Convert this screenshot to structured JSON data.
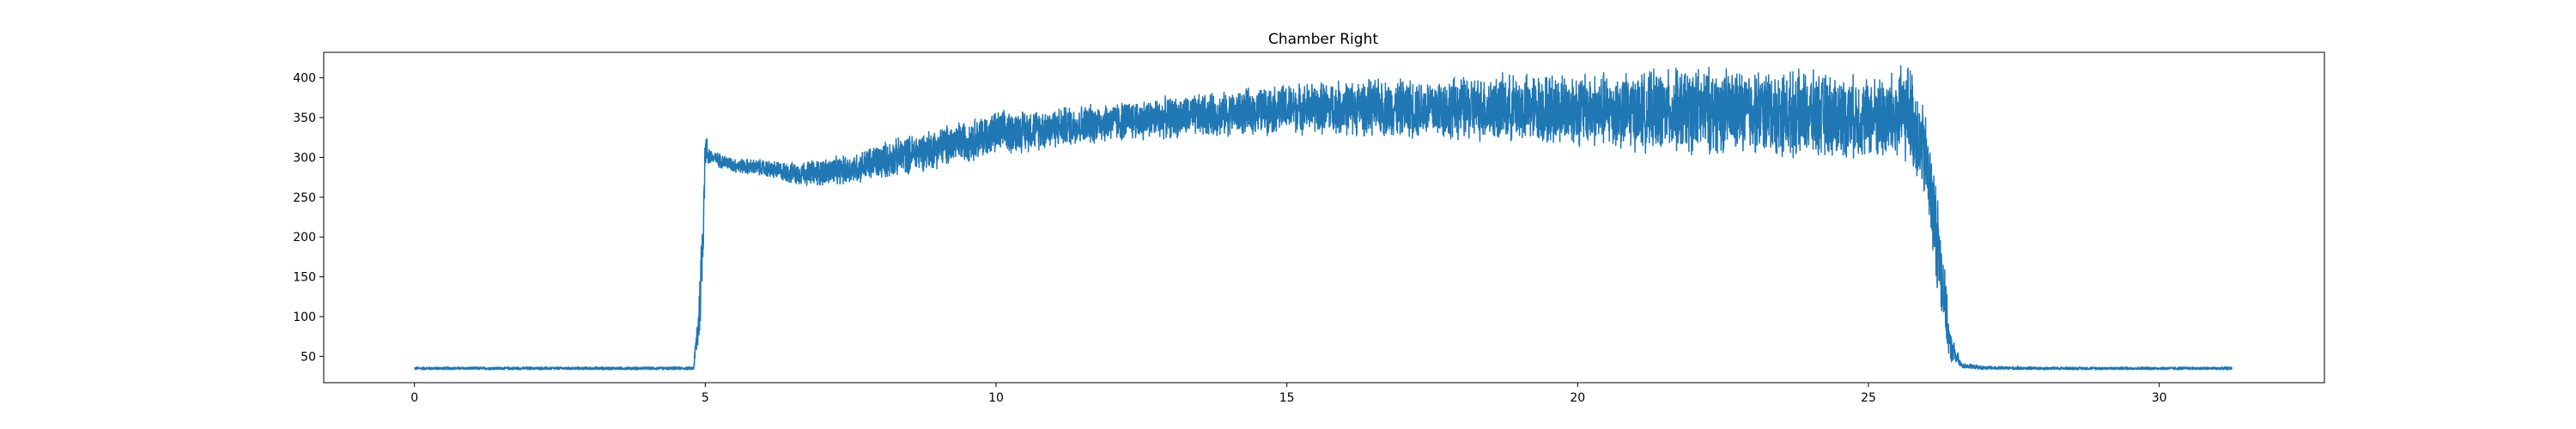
{
  "chart_data": {
    "type": "line",
    "title": "Chamber Right",
    "xlabel": "",
    "ylabel": "",
    "xlim": [
      -1.56,
      32.84
    ],
    "ylim": [
      17,
      432
    ],
    "xticks": [
      0,
      5,
      10,
      15,
      20,
      25,
      30
    ],
    "yticks": [
      50,
      100,
      150,
      200,
      250,
      300,
      350,
      400
    ],
    "grid": false,
    "legend": "none",
    "series_color": "#1f77b4",
    "series": [
      {
        "x": [
          0,
          1,
          2,
          3,
          4,
          4.8,
          4.9,
          4.95,
          5.0,
          5.1,
          5.5,
          6.0,
          6.5,
          7.0,
          7.5,
          8.0,
          9.0,
          10.0,
          11.0,
          12.0,
          13.0,
          14.0,
          15.0,
          16.0,
          17.0,
          18.0,
          19.0,
          20.0,
          21.0,
          22.0,
          23.0,
          24.0,
          25.0,
          25.5,
          25.7,
          26.0,
          26.2,
          26.4,
          26.6,
          27.0,
          28.0,
          29.0,
          30.0,
          31.25
        ],
        "y_min": [
          33,
          33,
          33,
          33,
          33,
          33,
          60,
          120,
          285,
          290,
          280,
          275,
          265,
          262,
          265,
          270,
          285,
          300,
          310,
          318,
          322,
          325,
          328,
          325,
          322,
          318,
          315,
          310,
          305,
          300,
          300,
          295,
          295,
          285,
          290,
          230,
          120,
          40,
          35,
          33,
          33,
          33,
          33,
          33
        ],
        "y_max": [
          37,
          37,
          37,
          37,
          37,
          37,
          150,
          250,
          335,
          310,
          300,
          298,
          295,
          300,
          305,
          320,
          340,
          360,
          365,
          372,
          378,
          385,
          395,
          400,
          402,
          405,
          408,
          412,
          410,
          418,
          415,
          412,
          405,
          415,
          425,
          355,
          260,
          85,
          42,
          38,
          37,
          37,
          37,
          37
        ]
      }
    ]
  }
}
